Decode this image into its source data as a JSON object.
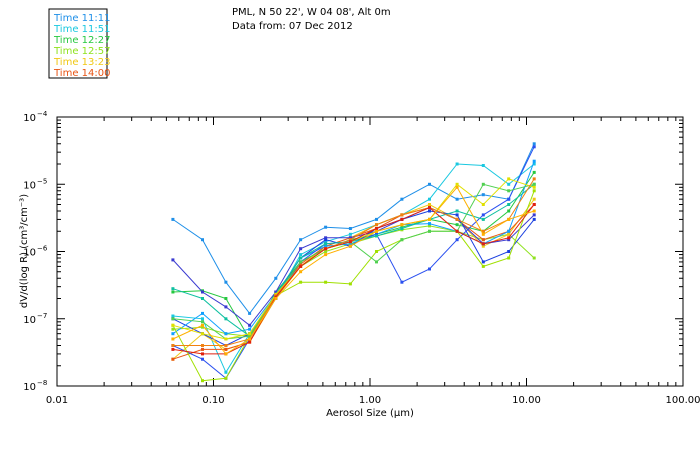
{
  "chart_data": {
    "type": "line",
    "title": "PML, N 50 22', W 04 08', Alt 0m",
    "subtitle": "Data from: 07 Dec 2012",
    "xlabel": "Aerosol Size (µm)",
    "ylabel": "dV/d(log R) (cm³/cm⁻³)",
    "x_scale": "log",
    "y_scale": "log",
    "xlim": [
      0.01,
      100
    ],
    "ylim": [
      1e-08,
      0.0001
    ],
    "x_ticks": [
      0.01,
      0.1,
      1,
      10,
      100
    ],
    "x_tick_labels": [
      "0.01",
      "0.10",
      "1.00",
      "10.00",
      "100.00"
    ],
    "y_ticks": [
      1e-08,
      1e-07,
      1e-06,
      1e-05,
      0.0001
    ],
    "y_tick_labels": [
      {
        "base": "10",
        "exp": "−8"
      },
      {
        "base": "10",
        "exp": "−7"
      },
      {
        "base": "10",
        "exp": "−6"
      },
      {
        "base": "10",
        "exp": "−5"
      },
      {
        "base": "10",
        "exp": "−4"
      }
    ],
    "x": [
      0.055,
      0.085,
      0.12,
      0.17,
      0.25,
      0.36,
      0.52,
      0.75,
      1.1,
      1.6,
      2.4,
      3.6,
      5.3,
      7.7,
      11.2
    ],
    "legend_position": "top-left, outside plot",
    "series": [
      {
        "name": "Time 11:11",
        "color": "#1e8fe8",
        "values": [
          3e-06,
          1.5e-06,
          3.5e-07,
          1.2e-07,
          4e-07,
          1.5e-06,
          2.3e-06,
          2.2e-06,
          3e-06,
          6e-06,
          1e-05,
          6e-06,
          7e-06,
          6e-06,
          4e-05
        ]
      },
      {
        "name": "Time 11:51",
        "color": "#19c8e0",
        "values": [
          1.1e-07,
          1e-07,
          1.6e-08,
          6e-08,
          2e-07,
          9e-07,
          1.4e-06,
          1.8e-06,
          2.5e-06,
          3.5e-06,
          6e-06,
          2e-05,
          1.9e-05,
          1e-05,
          2e-05
        ]
      },
      {
        "name": "Time 12:27",
        "color": "#26c840",
        "values": [
          2.5e-07,
          2.6e-07,
          2e-07,
          5e-08,
          2.5e-07,
          7e-07,
          1.1e-06,
          1.5e-06,
          1.8e-06,
          2.3e-06,
          3e-06,
          2.5e-06,
          2e-06,
          4e-06,
          1.5e-05
        ]
      },
      {
        "name": "Time 12:57",
        "color": "#8fe21e",
        "values": [
          7e-08,
          7.5e-08,
          6e-08,
          5.5e-08,
          2.2e-07,
          6e-07,
          1e-06,
          1.3e-06,
          1.7e-06,
          2.1e-06,
          2.4e-06,
          2e-06,
          1.5e-06,
          1.8e-06,
          8e-07
        ]
      },
      {
        "name": "Time 13:23",
        "color": "#f0c814",
        "values": [
          2.5e-08,
          6e-08,
          3.5e-08,
          4.5e-08,
          2e-07,
          6e-07,
          1.2e-06,
          1.6e-06,
          2.5e-06,
          3.5e-06,
          5e-06,
          3e-06,
          1.2e-06,
          1.8e-06,
          6e-06
        ]
      },
      {
        "name": "Time 14:00",
        "color": "#e85414",
        "values": [
          2.5e-08,
          3.5e-08,
          3.5e-08,
          4.5e-08,
          2.2e-07,
          6.5e-07,
          1.2e-06,
          1.6e-06,
          2.2e-06,
          3.5e-06,
          4.5e-06,
          3e-06,
          1.5e-06,
          2e-06,
          5e-06
        ]
      },
      {
        "name": "",
        "color": "#3a3ad0",
        "values": [
          7.5e-07,
          2.5e-07,
          1.5e-07,
          8e-08,
          2.5e-07,
          1.1e-06,
          1.6e-06,
          1.6e-06,
          2e-06,
          3e-06,
          4.5e-06,
          3e-06,
          1.3e-06,
          1.5e-06,
          3.5e-06
        ]
      },
      {
        "name": "",
        "color": "#1a3fe0",
        "values": [
          1e-07,
          6e-08,
          4e-08,
          6e-08,
          2.2e-07,
          8e-07,
          1.5e-06,
          1.2e-06,
          2.2e-06,
          3e-06,
          4e-06,
          3.5e-06,
          7e-07,
          1e-06,
          3e-06
        ]
      },
      {
        "name": "",
        "color": "#10a0ff",
        "values": [
          6e-08,
          1.2e-07,
          6e-08,
          7e-08,
          2.3e-07,
          8e-07,
          1.2e-06,
          1.3e-06,
          1.8e-06,
          2.5e-06,
          2.6e-06,
          2e-06,
          1.3e-06,
          2e-06,
          2.2e-05
        ]
      },
      {
        "name": "",
        "color": "#2a50f0",
        "values": [
          4e-08,
          2.5e-08,
          1.3e-08,
          5e-08,
          2e-07,
          7e-07,
          1.3e-06,
          1.4e-06,
          1.8e-06,
          3.5e-07,
          5.5e-07,
          1.5e-06,
          3.5e-06,
          6e-06,
          3.6e-05
        ]
      },
      {
        "name": "",
        "color": "#0fc0a0",
        "values": [
          2.8e-07,
          2e-07,
          1e-07,
          5.5e-08,
          2.3e-07,
          8e-07,
          1.3e-06,
          1.4e-06,
          1.7e-06,
          2.2e-06,
          3e-06,
          4e-06,
          3e-06,
          5e-06,
          1e-05
        ]
      },
      {
        "name": "",
        "color": "#a0e000",
        "values": [
          8e-08,
          1.2e-08,
          1.3e-08,
          5.5e-08,
          2.2e-07,
          3.5e-07,
          3.5e-07,
          3.3e-07,
          1e-06,
          1.5e-06,
          2e-06,
          2e-06,
          6e-07,
          8e-07,
          8e-06
        ]
      },
      {
        "name": "",
        "color": "#50d050",
        "values": [
          1e-07,
          9e-08,
          5e-08,
          5.5e-08,
          2.2e-07,
          7e-07,
          1.1e-06,
          1.4e-06,
          7e-07,
          1.5e-06,
          2e-06,
          2e-06,
          1e-05,
          8e-06,
          1e-05
        ]
      },
      {
        "name": "",
        "color": "#e0e000",
        "values": [
          8e-08,
          6e-08,
          5e-08,
          6e-08,
          2.3e-07,
          6e-07,
          1.1e-06,
          1.4e-06,
          2e-06,
          2.5e-06,
          3e-06,
          1e-05,
          5e-06,
          1.2e-05,
          9e-06
        ]
      },
      {
        "name": "",
        "color": "#f08010",
        "values": [
          4e-08,
          4e-08,
          4e-08,
          5e-08,
          2.2e-07,
          6e-07,
          1.1e-06,
          1.5e-06,
          2.5e-06,
          3.5e-06,
          4.5e-06,
          3e-06,
          2e-06,
          3e-06,
          1.2e-05
        ]
      },
      {
        "name": "",
        "color": "#e02010",
        "values": [
          3.5e-08,
          3e-08,
          3e-08,
          4.5e-08,
          2.1e-07,
          6e-07,
          1.1e-06,
          1.4e-06,
          2.2e-06,
          3e-06,
          4.5e-06,
          2e-06,
          1.3e-06,
          1.6e-06,
          5e-06
        ]
      },
      {
        "name": "",
        "color": "#ffb000",
        "values": [
          5e-08,
          8e-08,
          3e-08,
          5e-08,
          2e-07,
          5e-07,
          9e-07,
          1.2e-06,
          2e-06,
          2.5e-06,
          3e-06,
          9e-06,
          1.8e-06,
          3e-06,
          4e-06
        ]
      }
    ]
  }
}
